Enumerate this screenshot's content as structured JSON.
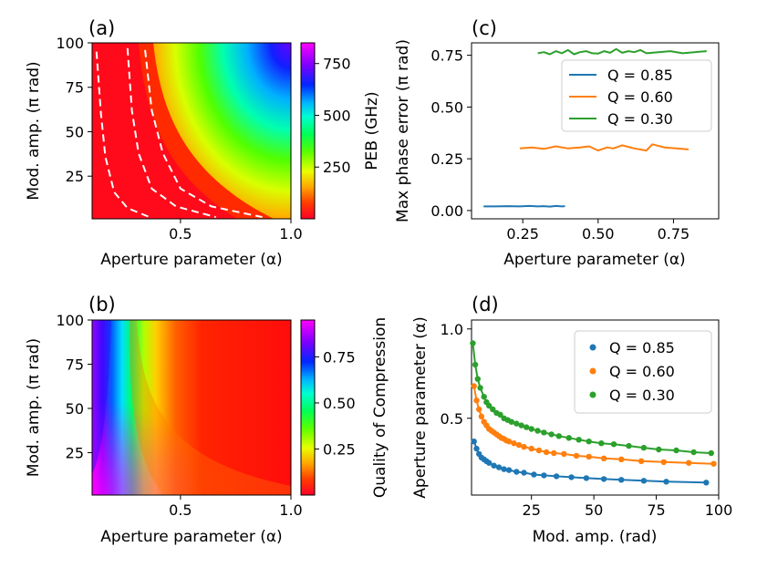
{
  "figure_labels": {
    "a": "(a)",
    "b": "(b)",
    "c": "(c)",
    "d": "(d)"
  },
  "chart_data": [
    {
      "id": "a",
      "type": "heatmap",
      "title": "",
      "xlabel": "Aperture parameter (α)",
      "ylabel": "Mod. amp. (π rad)",
      "xlim": [
        0.1,
        1.0
      ],
      "ylim": [
        1,
        100
      ],
      "xticks": [
        0.5,
        1.0
      ],
      "xtick_labels": [
        "0.5",
        "1.0"
      ],
      "yticks": [
        25,
        50,
        75,
        100
      ],
      "ytick_labels": [
        "25",
        "50",
        "75",
        "100"
      ],
      "colorbar": {
        "label": "PEB (GHz)",
        "range": [
          0,
          850
        ],
        "ticks": [
          250,
          500,
          750
        ],
        "tick_labels": [
          "250",
          "500",
          "750"
        ],
        "colormap": "gist_rainbow"
      },
      "contours": [
        {
          "x": [
            0.12,
            0.14,
            0.16,
            0.2,
            0.26,
            0.36
          ],
          "y": [
            95,
            60,
            36,
            16,
            7,
            2
          ]
        },
        {
          "x": [
            0.26,
            0.28,
            0.31,
            0.37,
            0.48,
            0.66
          ],
          "y": [
            97,
            62,
            38,
            18,
            8,
            2
          ]
        },
        {
          "x": [
            0.34,
            0.37,
            0.42,
            0.5,
            0.64,
            0.87
          ],
          "y": [
            96,
            62,
            38,
            18,
            8,
            2
          ]
        }
      ]
    },
    {
      "id": "b",
      "type": "heatmap",
      "title": "",
      "xlabel": "Aperture parameter (α)",
      "ylabel": "Mod. amp. (π rad)",
      "xlim": [
        0.1,
        1.0
      ],
      "ylim": [
        1,
        100
      ],
      "xticks": [
        0.5,
        1.0
      ],
      "xtick_labels": [
        "0.5",
        "1.0"
      ],
      "yticks": [
        25,
        50,
        75,
        100
      ],
      "ytick_labels": [
        "25",
        "50",
        "75",
        "100"
      ],
      "colorbar": {
        "label": "Quality of Compression",
        "range": [
          0,
          0.95
        ],
        "ticks": [
          0.25,
          0.5,
          0.75
        ],
        "tick_labels": [
          "0.25",
          "0.50",
          "0.75"
        ],
        "colormap": "gist_rainbow"
      }
    },
    {
      "id": "c",
      "type": "line",
      "title": "",
      "xlabel": "Aperture parameter (α)",
      "ylabel": "Max phase error (π rad)",
      "xlim": [
        0.08,
        0.9
      ],
      "ylim": [
        -0.04,
        0.81
      ],
      "xticks": [
        0.25,
        0.5,
        0.75
      ],
      "xtick_labels": [
        "0.25",
        "0.50",
        "0.75"
      ],
      "yticks": [
        0.0,
        0.25,
        0.5,
        0.75
      ],
      "ytick_labels": [
        "0.00",
        "0.25",
        "0.50",
        "0.75"
      ],
      "legend_position": "upper right",
      "series": [
        {
          "name": "Q = 0.85",
          "color": "#1f77b4",
          "x": [
            0.12,
            0.16,
            0.2,
            0.24,
            0.27,
            0.3,
            0.32,
            0.34,
            0.36,
            0.38,
            0.39
          ],
          "y": [
            0.02,
            0.02,
            0.021,
            0.02,
            0.022,
            0.02,
            0.021,
            0.019,
            0.022,
            0.02,
            0.021
          ]
        },
        {
          "name": "Q = 0.60",
          "color": "#ff7f0e",
          "x": [
            0.24,
            0.28,
            0.32,
            0.36,
            0.4,
            0.44,
            0.47,
            0.5,
            0.53,
            0.55,
            0.58,
            0.62,
            0.66,
            0.68,
            0.72,
            0.76,
            0.8
          ],
          "y": [
            0.3,
            0.305,
            0.298,
            0.31,
            0.3,
            0.305,
            0.31,
            0.29,
            0.305,
            0.3,
            0.315,
            0.3,
            0.29,
            0.32,
            0.305,
            0.3,
            0.295
          ]
        },
        {
          "name": "Q = 0.30",
          "color": "#2ca02c",
          "x": [
            0.3,
            0.32,
            0.34,
            0.36,
            0.38,
            0.4,
            0.42,
            0.44,
            0.46,
            0.48,
            0.5,
            0.52,
            0.54,
            0.56,
            0.58,
            0.6,
            0.62,
            0.64,
            0.66,
            0.7,
            0.74,
            0.78,
            0.82,
            0.86
          ],
          "y": [
            0.76,
            0.765,
            0.755,
            0.77,
            0.76,
            0.775,
            0.755,
            0.765,
            0.77,
            0.76,
            0.758,
            0.77,
            0.762,
            0.78,
            0.762,
            0.77,
            0.765,
            0.775,
            0.76,
            0.765,
            0.77,
            0.76,
            0.765,
            0.77
          ]
        }
      ]
    },
    {
      "id": "d",
      "type": "scatter",
      "title": "",
      "xlabel": "Mod. amp. (rad)",
      "ylabel": "Aperture parameter (α)",
      "xlim": [
        1,
        100
      ],
      "ylim": [
        0.07,
        1.05
      ],
      "xticks": [
        25,
        50,
        75,
        100
      ],
      "xtick_labels": [
        "25",
        "50",
        "75",
        "100"
      ],
      "yticks": [
        0.5,
        1.0
      ],
      "ytick_labels": [
        "0.5",
        "1.0"
      ],
      "legend_position": "upper right",
      "series": [
        {
          "name": "Q = 0.85",
          "color": "#1f77b4",
          "x": [
            2,
            3,
            4,
            5,
            6,
            7,
            8,
            10,
            12,
            14,
            16,
            19,
            22,
            26,
            30,
            35,
            41,
            47,
            54,
            61,
            70,
            79,
            95
          ],
          "y": [
            0.37,
            0.33,
            0.3,
            0.28,
            0.27,
            0.26,
            0.25,
            0.235,
            0.225,
            0.215,
            0.21,
            0.2,
            0.195,
            0.185,
            0.18,
            0.175,
            0.17,
            0.165,
            0.16,
            0.155,
            0.15,
            0.145,
            0.14
          ]
        },
        {
          "name": "Q = 0.60",
          "color": "#ff7f0e",
          "x": [
            2,
            3,
            4,
            5,
            6,
            7,
            8,
            9,
            10,
            11,
            12,
            13,
            14,
            15,
            16,
            18,
            20,
            22,
            25,
            28,
            31,
            34,
            38,
            43,
            48,
            54,
            61,
            69,
            78,
            88,
            98
          ],
          "y": [
            0.68,
            0.6,
            0.55,
            0.51,
            0.48,
            0.46,
            0.44,
            0.43,
            0.42,
            0.41,
            0.4,
            0.39,
            0.385,
            0.375,
            0.37,
            0.36,
            0.35,
            0.34,
            0.33,
            0.32,
            0.31,
            0.305,
            0.3,
            0.29,
            0.285,
            0.275,
            0.27,
            0.26,
            0.255,
            0.25,
            0.245
          ]
        },
        {
          "name": "Q = 0.30",
          "color": "#2ca02c",
          "x": [
            1.5,
            2.5,
            3.5,
            4.5,
            6,
            7,
            8,
            9.5,
            11,
            12.5,
            14,
            15.5,
            17,
            19,
            21,
            23,
            25,
            27.5,
            30,
            33,
            36,
            40,
            44,
            48,
            53,
            58,
            64,
            70,
            76,
            83,
            90,
            97
          ],
          "y": [
            0.92,
            0.8,
            0.72,
            0.67,
            0.62,
            0.59,
            0.57,
            0.55,
            0.53,
            0.52,
            0.5,
            0.49,
            0.48,
            0.47,
            0.46,
            0.45,
            0.44,
            0.43,
            0.42,
            0.41,
            0.4,
            0.39,
            0.38,
            0.37,
            0.36,
            0.355,
            0.345,
            0.335,
            0.325,
            0.32,
            0.31,
            0.305
          ]
        }
      ]
    }
  ]
}
